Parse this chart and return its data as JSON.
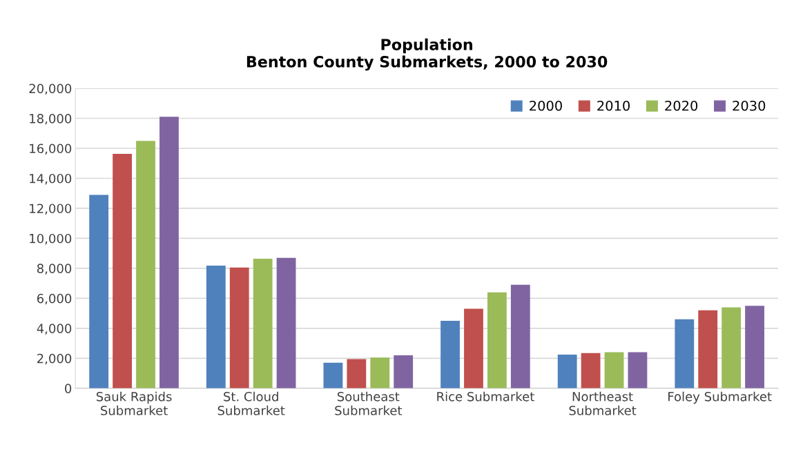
{
  "chart_data": {
    "type": "bar",
    "title": "Population\nBenton County Submarkets, 2000 to 2030",
    "categories": [
      "Sauk Rapids\nSubmarket",
      "St. Cloud\nSubmarket",
      "Southeast\nSubmarket",
      "Rice Submarket",
      "Northeast\nSubmarket",
      "Foley Submarket"
    ],
    "series": [
      {
        "name": "2000",
        "color": "#4f81bd",
        "values": [
          12900,
          8180,
          1700,
          4500,
          2250,
          4600
        ]
      },
      {
        "name": "2010",
        "color": "#c0504d",
        "values": [
          15630,
          8050,
          1950,
          5300,
          2350,
          5200
        ]
      },
      {
        "name": "2020",
        "color": "#9bbb59",
        "values": [
          16500,
          8640,
          2050,
          6400,
          2400,
          5400
        ]
      },
      {
        "name": "2030",
        "color": "#8064a2",
        "values": [
          18100,
          8700,
          2200,
          6900,
          2400,
          5500
        ]
      }
    ],
    "ylim": [
      0,
      20000
    ],
    "yticks": [
      {
        "value": 0,
        "label": "0"
      },
      {
        "value": 2000,
        "label": "2,000"
      },
      {
        "value": 4000,
        "label": "4,000"
      },
      {
        "value": 6000,
        "label": "6,000"
      },
      {
        "value": 8000,
        "label": "8,000"
      },
      {
        "value": 10000,
        "label": "10,000"
      },
      {
        "value": 12000,
        "label": "12,000"
      },
      {
        "value": 14000,
        "label": "14,000"
      },
      {
        "value": 16000,
        "label": "16,000"
      },
      {
        "value": 18000,
        "label": "18,000"
      },
      {
        "value": 20000,
        "label": "20,000"
      }
    ],
    "grid": "y",
    "legend": "top right"
  }
}
